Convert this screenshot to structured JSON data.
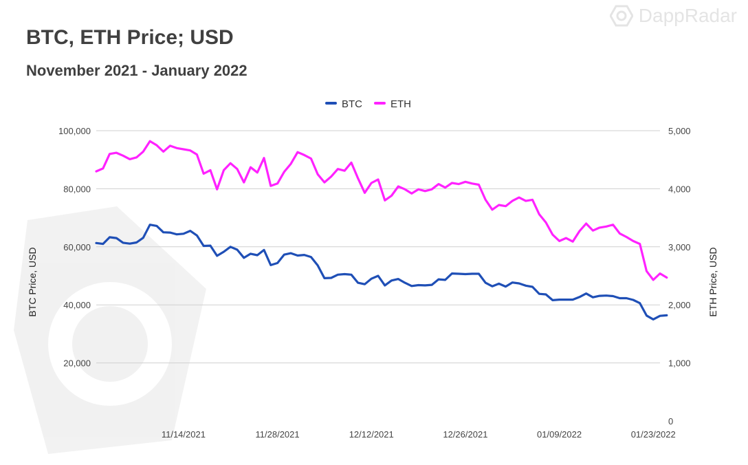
{
  "brand": {
    "name": "DappRadar",
    "icon": "dappradar-logo-icon"
  },
  "chart_data": {
    "type": "line",
    "title": "BTC, ETH Price; USD",
    "subtitle": "November 2021 - January 2022",
    "ylabel": "BTC Price, USD",
    "y2label": "ETH Price, USD",
    "ylim": [
      0,
      100000
    ],
    "y2lim": [
      0,
      5000
    ],
    "yticks": [
      "20,000",
      "40,000",
      "60,000",
      "80,000",
      "100,000"
    ],
    "y2ticks": [
      "0",
      "1,000",
      "2,000",
      "3,000",
      "4,000",
      "5,000"
    ],
    "xticks": [
      "11/14/2021",
      "11/28/2021",
      "12/12/2021",
      "12/26/2021",
      "01/09/2022",
      "01/23/2022"
    ],
    "x_start": "2021-11-01",
    "x_end": "2022-01-24",
    "legend_position": "top-center",
    "grid": true,
    "series": [
      {
        "name": "BTC",
        "axis": "left",
        "color": "#1f4fb6",
        "values": [
          61300,
          61000,
          63300,
          63000,
          61400,
          61100,
          61500,
          63100,
          67600,
          67200,
          65000,
          64900,
          64300,
          64500,
          65500,
          63900,
          60300,
          60400,
          56900,
          58300,
          60000,
          59000,
          56200,
          57600,
          57100,
          58900,
          53700,
          54400,
          57300,
          57800,
          57000,
          57200,
          56500,
          53600,
          49200,
          49300,
          50400,
          50600,
          50400,
          47600,
          47100,
          49000,
          50000,
          46700,
          48400,
          48900,
          47600,
          46500,
          46800,
          46700,
          46900,
          48800,
          48600,
          50800,
          50700,
          50600,
          50700,
          50700,
          47600,
          46400,
          47300,
          46300,
          47700,
          47400,
          46600,
          46200,
          43800,
          43600,
          41600,
          41800,
          41800,
          41800,
          42700,
          43900,
          42600,
          43100,
          43200,
          43000,
          42300,
          42300,
          41700,
          40600,
          36300,
          35000,
          36200,
          36400
        ]
      },
      {
        "name": "ETH",
        "axis": "right",
        "color": "#ff22ff",
        "values": [
          4300,
          4350,
          4600,
          4620,
          4570,
          4510,
          4540,
          4640,
          4820,
          4750,
          4640,
          4740,
          4700,
          4680,
          4660,
          4590,
          4260,
          4320,
          3990,
          4320,
          4440,
          4340,
          4110,
          4370,
          4280,
          4530,
          4050,
          4090,
          4290,
          4430,
          4630,
          4580,
          4520,
          4250,
          4110,
          4210,
          4340,
          4310,
          4450,
          4180,
          3930,
          4100,
          4160,
          3800,
          3880,
          4040,
          3990,
          3920,
          3990,
          3960,
          3990,
          4080,
          4020,
          4100,
          4080,
          4120,
          4090,
          4070,
          3810,
          3640,
          3720,
          3700,
          3790,
          3850,
          3790,
          3810,
          3560,
          3420,
          3210,
          3100,
          3150,
          3090,
          3270,
          3400,
          3280,
          3330,
          3350,
          3380,
          3230,
          3170,
          3100,
          3050,
          2580,
          2430,
          2540,
          2470
        ]
      }
    ]
  }
}
